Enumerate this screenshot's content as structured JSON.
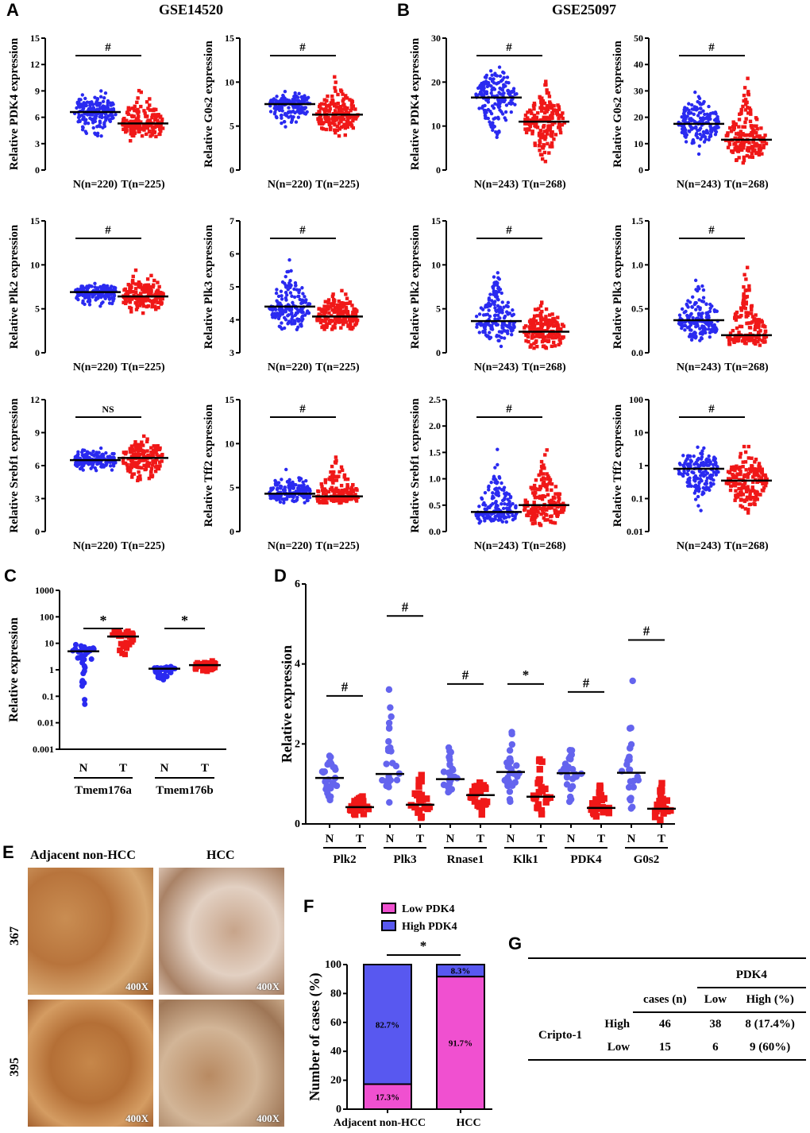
{
  "panels": {
    "A": "A",
    "B": "B",
    "C": "C",
    "D": "D",
    "E": "E",
    "F": "F",
    "G": "G"
  },
  "titles": {
    "A": "GSE14520",
    "B": "GSE25097"
  },
  "chart_data": [
    {
      "id": "A1",
      "type": "scatter",
      "ylabel": "Relative PDK4 expression",
      "ylim": [
        0,
        15
      ],
      "ticks": [
        0,
        3,
        6,
        9,
        12,
        15
      ],
      "groups": [
        "N(n=220)",
        "T(n=225)"
      ],
      "means": [
        6.6,
        5.3
      ],
      "ranges": [
        [
          3.5,
          9.5
        ],
        [
          3,
          9.8
        ]
      ],
      "sig": "#"
    },
    {
      "id": "A2",
      "type": "scatter",
      "ylabel": "Relative G0s2 expression",
      "ylim": [
        0,
        15
      ],
      "ticks": [
        0,
        5,
        10,
        15
      ],
      "groups": [
        "N(n=220)",
        "T(n=225)"
      ],
      "means": [
        7.5,
        6.3
      ],
      "ranges": [
        [
          4.5,
          9.5
        ],
        [
          3,
          11
        ]
      ],
      "sig": "#"
    },
    {
      "id": "B1",
      "type": "scatter",
      "ylabel": "Relative PDK4 expression",
      "ylim": [
        0,
        30
      ],
      "ticks": [
        0,
        10,
        20,
        30
      ],
      "groups": [
        "N(n=243)",
        "T(n=268)"
      ],
      "means": [
        16.5,
        11
      ],
      "ranges": [
        [
          4,
          28
        ],
        [
          0.2,
          25.5
        ]
      ],
      "sig": "#"
    },
    {
      "id": "B2",
      "type": "scatter",
      "ylabel": "Relative G0s2 expression",
      "ylim": [
        0,
        50
      ],
      "ticks": [
        0,
        10,
        20,
        30,
        40,
        50
      ],
      "groups": [
        "N(n=243)",
        "T(n=268)"
      ],
      "means": [
        17.5,
        11.5
      ],
      "ranges": [
        [
          5,
          35
        ],
        [
          0.2,
          44
        ]
      ],
      "sig": "#"
    },
    {
      "id": "A3",
      "type": "scatter",
      "ylabel": "Relative Plk2 expression",
      "ylim": [
        0,
        15
      ],
      "ticks": [
        0,
        5,
        10,
        15
      ],
      "groups": [
        "N(n=220)",
        "T(n=225)"
      ],
      "means": [
        6.9,
        6.4
      ],
      "ranges": [
        [
          5,
          8.5
        ],
        [
          4.3,
          10.2
        ]
      ],
      "sig": "#"
    },
    {
      "id": "A4",
      "type": "scatter",
      "ylabel": "Relative Plk3 expression",
      "ylim": [
        3,
        7
      ],
      "ticks": [
        3,
        4,
        5,
        6,
        7
      ],
      "groups": [
        "N(n=220)",
        "T(n=225)"
      ],
      "means": [
        4.4,
        4.1
      ],
      "ranges": [
        [
          3.5,
          6.2
        ],
        [
          3.5,
          5.2
        ]
      ],
      "sig": "#"
    },
    {
      "id": "B3",
      "type": "scatter",
      "ylabel": "Relative Plk2 expression",
      "ylim": [
        0,
        15
      ],
      "ticks": [
        0,
        5,
        10,
        15
      ],
      "groups": [
        "N(n=243)",
        "T(n=268)"
      ],
      "means": [
        3.6,
        2.4
      ],
      "ranges": [
        [
          0.5,
          12
        ],
        [
          0.1,
          7.7
        ]
      ],
      "sig": "#"
    },
    {
      "id": "B4",
      "type": "scatter",
      "ylabel": "Relative Plk3 expression",
      "ylim": [
        0,
        1.5
      ],
      "ticks": [
        0.0,
        0.5,
        1.0,
        1.5
      ],
      "tick_labels": [
        "0.0",
        "0.5",
        "1.0",
        "1.5"
      ],
      "groups": [
        "N(n=243)",
        "T(n=268)"
      ],
      "means": [
        0.37,
        0.2
      ],
      "ranges": [
        [
          0.1,
          1.15
        ],
        [
          0.05,
          1.22
        ]
      ],
      "sig": "#"
    },
    {
      "id": "A5",
      "type": "scatter",
      "ylabel": "Relative Srebf1 expression",
      "ylim": [
        0,
        12
      ],
      "ticks": [
        0,
        3,
        6,
        9,
        12
      ],
      "groups": [
        "N(n=220)",
        "T(n=225)"
      ],
      "means": [
        6.5,
        6.7
      ],
      "ranges": [
        [
          5.2,
          8.2
        ],
        [
          4.2,
          9.5
        ]
      ],
      "sig": "NS"
    },
    {
      "id": "A6",
      "type": "scatter",
      "ylabel": "Relative Tff2 expression",
      "ylim": [
        0,
        15
      ],
      "ticks": [
        0,
        5,
        10,
        15
      ],
      "groups": [
        "N(n=220)",
        "T(n=225)"
      ],
      "means": [
        4.3,
        4.0
      ],
      "ranges": [
        [
          3,
          8
        ],
        [
          3,
          9.8
        ]
      ],
      "sig": "#"
    },
    {
      "id": "B5",
      "type": "scatter",
      "ylabel": "Relative Srebf1 expression",
      "ylim": [
        0,
        2.5
      ],
      "ticks": [
        0,
        0.5,
        1,
        1.5,
        2,
        2.5
      ],
      "tick_labels": [
        "0.0",
        "0.5",
        "1.0",
        "1.5",
        "2.0",
        "2.5"
      ],
      "groups": [
        "N(n=243)",
        "T(n=268)"
      ],
      "means": [
        0.37,
        0.5
      ],
      "ranges": [
        [
          0.1,
          1.75
        ],
        [
          0.02,
          2.2
        ]
      ],
      "sig": "#"
    },
    {
      "id": "B6",
      "type": "scatter",
      "scale": "log",
      "ylabel": "Relative Tff2 expression",
      "ylim": [
        0.01,
        100
      ],
      "ticks": [
        0.01,
        0.1,
        1,
        10,
        100
      ],
      "tick_labels": [
        "0.01",
        "0.1",
        "1",
        "10",
        "100"
      ],
      "groups": [
        "N(n=243)",
        "T(n=268)"
      ],
      "means": [
        0.8,
        0.35
      ],
      "ranges": [
        [
          0.03,
          12
        ],
        [
          0.02,
          13
        ]
      ],
      "sig": "#"
    },
    {
      "id": "C",
      "type": "scatter",
      "scale": "log",
      "ylabel": "Relative expression",
      "ylim": [
        0.001,
        1000
      ],
      "ticks": [
        0.001,
        0.01,
        0.1,
        1,
        10,
        100,
        1000
      ],
      "tick_labels": [
        "0.001",
        "0.01",
        "0.1",
        "1",
        "10",
        "100",
        "1000"
      ],
      "genes": [
        "Tmem176a",
        "Tmem176b"
      ],
      "group_labels": [
        "N",
        "T"
      ],
      "means": [
        [
          5,
          18
        ],
        [
          1.1,
          1.5
        ]
      ],
      "ranges": [
        [
          [
            0.004,
            20
          ],
          [
            1,
            70
          ]
        ],
        [
          [
            0.25,
            1.6
          ],
          [
            0.7,
            3
          ]
        ]
      ],
      "sig": [
        "*",
        "*"
      ]
    },
    {
      "id": "D",
      "type": "scatter",
      "ylabel": "Relative expression",
      "ylim": [
        0,
        6
      ],
      "ticks": [
        0,
        2,
        4,
        6
      ],
      "genes": [
        "Plk2",
        "Plk3",
        "Rnase1",
        "Klk1",
        "PDK4",
        "G0s2"
      ],
      "group_labels": [
        "N",
        "T"
      ],
      "means": [
        [
          1.15,
          0.42
        ],
        [
          1.25,
          0.48
        ],
        [
          1.12,
          0.72
        ],
        [
          1.3,
          0.68
        ],
        [
          1.27,
          0.4
        ],
        [
          1.28,
          0.38
        ]
      ],
      "ranges": [
        [
          [
            0.3,
            2.7
          ],
          [
            0.05,
            1.05
          ]
        ],
        [
          [
            0.3,
            4.7
          ],
          [
            0.05,
            1.8
          ]
        ],
        [
          [
            0.4,
            3.2
          ],
          [
            0.05,
            1.6
          ]
        ],
        [
          [
            0.1,
            2.9
          ],
          [
            0.05,
            3
          ]
        ],
        [
          [
            0.1,
            2.9
          ],
          [
            0.05,
            1.8
          ]
        ],
        [
          [
            0.1,
            4.1
          ],
          [
            0.05,
            1.55
          ]
        ]
      ],
      "sig": [
        "#",
        "#",
        "#",
        "*",
        "#",
        "#"
      ]
    },
    {
      "id": "F",
      "type": "bar",
      "stacked": true,
      "ylabel": "Number of cases (%)",
      "ylim": [
        0,
        100
      ],
      "ticks": [
        0,
        20,
        40,
        60,
        80,
        100
      ],
      "categories": [
        "Adjacent non-HCC",
        "HCC"
      ],
      "series": [
        {
          "name": "Low PDK4",
          "color": "#f050d0",
          "values": [
            17.3,
            91.7
          ],
          "labels": [
            "17.3%",
            "91.7%"
          ]
        },
        {
          "name": "High PDK4",
          "color": "#5858f0",
          "values": [
            82.7,
            8.3
          ],
          "labels": [
            "82.7%",
            "8.3%"
          ]
        }
      ],
      "sig": "*"
    }
  ],
  "colors": {
    "normal": "#2a2af0",
    "tumor": "#f01818",
    "d_normal": "#6464ee",
    "d_tumor": "#f01818"
  },
  "ihc": {
    "col_labels": [
      "Adjacent non-HCC",
      "HCC"
    ],
    "row_labels": [
      "367",
      "395"
    ],
    "magnification": "400X"
  },
  "table": {
    "group_header": "PDK4",
    "headers": [
      "cases (n)",
      "Low",
      "High (%)"
    ],
    "row_group": "Cripto-1",
    "rows": [
      {
        "label": "High",
        "cases": "46",
        "low": "38",
        "high": "8 (17.4%)"
      },
      {
        "label": "Low",
        "cases": "15",
        "low": "6",
        "high": "9 (60%)"
      }
    ]
  }
}
